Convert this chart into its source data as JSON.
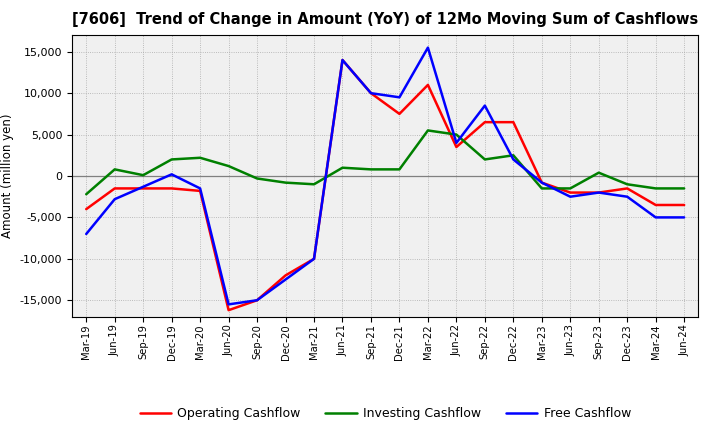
{
  "title": "[7606]  Trend of Change in Amount (YoY) of 12Mo Moving Sum of Cashflows",
  "ylabel": "Amount (million yen)",
  "ylim": [
    -17000,
    17000
  ],
  "yticks": [
    -15000,
    -10000,
    -5000,
    0,
    5000,
    10000,
    15000
  ],
  "labels": [
    "Mar-19",
    "Jun-19",
    "Sep-19",
    "Dec-19",
    "Mar-20",
    "Jun-20",
    "Sep-20",
    "Dec-20",
    "Mar-21",
    "Jun-21",
    "Sep-21",
    "Dec-21",
    "Mar-22",
    "Jun-22",
    "Sep-22",
    "Dec-22",
    "Mar-23",
    "Jun-23",
    "Sep-23",
    "Dec-23",
    "Mar-24",
    "Jun-24"
  ],
  "operating": [
    -4000,
    -1500,
    -1500,
    -1500,
    -1800,
    -16200,
    -15000,
    -12000,
    -10000,
    14000,
    10000,
    7500,
    11000,
    3500,
    6500,
    6500,
    -800,
    -2000,
    -2000,
    -1500,
    -3500,
    -3500
  ],
  "investing": [
    -2200,
    800,
    100,
    2000,
    2200,
    1200,
    -300,
    -800,
    -1000,
    1000,
    800,
    800,
    5500,
    5000,
    2000,
    2500,
    -1500,
    -1500,
    400,
    -1000,
    -1500,
    -1500
  ],
  "free": [
    -7000,
    -2800,
    -1300,
    200,
    -1500,
    -15500,
    -15000,
    -12500,
    -10000,
    14000,
    10000,
    9500,
    15500,
    4000,
    8500,
    2000,
    -800,
    -2500,
    -2000,
    -2500,
    -5000,
    -5000
  ],
  "op_color": "#ff0000",
  "inv_color": "#008000",
  "free_color": "#0000ff",
  "linewidth": 1.8,
  "bg_color": "#ffffff",
  "plot_bg": "#f0f0f0",
  "grid_color": "#aaaaaa",
  "zero_line_color": "#808080"
}
